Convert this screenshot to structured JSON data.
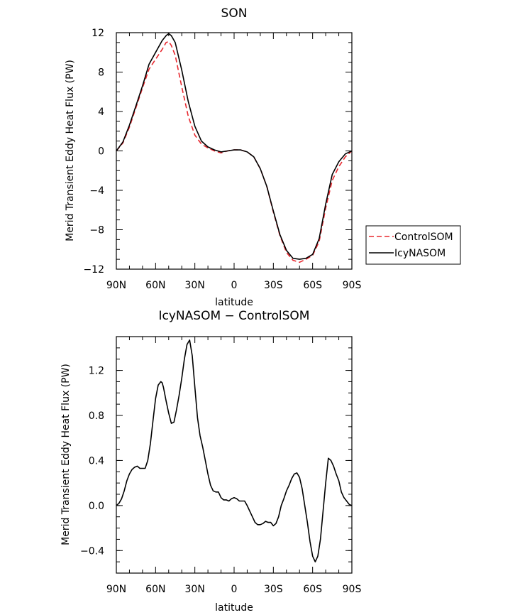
{
  "chart_data": [
    {
      "type": "line",
      "title": "SON",
      "xlabel": "latitude",
      "ylabel": "Merid Transient Eddy Heat Flux (PW)",
      "x_ticks": [
        "90N",
        "60N",
        "30N",
        "0",
        "30S",
        "60S",
        "90S"
      ],
      "y_ticks": [
        "12",
        "8",
        "4",
        "0",
        "−4",
        "−8",
        "−12"
      ],
      "xlim": [
        90,
        -90
      ],
      "ylim": [
        -12,
        12
      ],
      "grid": false,
      "legend_position": "right",
      "series": [
        {
          "name": "ControlSOM",
          "color": "#e8282f",
          "dash": "dashed",
          "x": [
            90,
            85,
            80,
            75,
            70,
            65,
            60,
            55,
            52,
            50,
            48,
            45,
            40,
            35,
            30,
            25,
            20,
            15,
            10,
            5,
            0,
            -5,
            -10,
            -15,
            -20,
            -25,
            -30,
            -35,
            -40,
            -45,
            -50,
            -55,
            -60,
            -65,
            -70,
            -75,
            -80,
            -85,
            -90
          ],
          "y": [
            0,
            0.8,
            2.4,
            4.4,
            6.4,
            8.3,
            9.3,
            10.3,
            11,
            11.1,
            10.7,
            9.7,
            6.5,
            3.5,
            1.6,
            0.7,
            0.3,
            0,
            -0.2,
            0,
            0.1,
            0.1,
            -0.1,
            -0.6,
            -1.8,
            -3.6,
            -6.2,
            -8.6,
            -10.3,
            -11.1,
            -11.3,
            -11,
            -10.6,
            -9.2,
            -5.8,
            -3,
            -1.6,
            -0.6,
            0
          ]
        },
        {
          "name": "IcyNASOM",
          "color": "#000000",
          "dash": "solid",
          "x": [
            90,
            85,
            80,
            75,
            70,
            65,
            60,
            55,
            52,
            50,
            48,
            45,
            40,
            35,
            30,
            25,
            20,
            15,
            10,
            5,
            0,
            -5,
            -10,
            -15,
            -20,
            -25,
            -30,
            -35,
            -40,
            -45,
            -50,
            -55,
            -60,
            -65,
            -70,
            -75,
            -80,
            -85,
            -90
          ],
          "y": [
            0,
            0.9,
            2.6,
            4.6,
            6.6,
            8.8,
            10,
            11.2,
            11.7,
            11.9,
            11.7,
            11,
            8.2,
            5,
            2.5,
            1,
            0.4,
            0.1,
            -0.1,
            0,
            0.1,
            0.1,
            -0.1,
            -0.6,
            -1.8,
            -3.6,
            -6.1,
            -8.5,
            -10.1,
            -10.9,
            -11,
            -10.9,
            -10.5,
            -8.9,
            -5.4,
            -2.4,
            -1.1,
            -0.3,
            0
          ]
        }
      ]
    },
    {
      "type": "line",
      "title": "IcyNASOM − ControlSOM",
      "xlabel": "latitude",
      "ylabel": "Merid Transient Eddy Heat Flux (PW)",
      "x_ticks": [
        "90N",
        "60N",
        "30N",
        "0",
        "30S",
        "60S",
        "90S"
      ],
      "y_ticks": [
        "1.2",
        "0.8",
        "0.4",
        "0.0",
        "−0.4"
      ],
      "xlim": [
        90,
        -90
      ],
      "ylim": [
        -0.6,
        1.5
      ],
      "grid": false,
      "series": [
        {
          "color": "#000000",
          "x": [
            90,
            88,
            86,
            84,
            82,
            80,
            78,
            76,
            74,
            72,
            70,
            68,
            66,
            64,
            62,
            60,
            58,
            56,
            55,
            54,
            52,
            50,
            48,
            46,
            44,
            42,
            40,
            38,
            36,
            34,
            32,
            30,
            28,
            26,
            24,
            22,
            20,
            18,
            16,
            14,
            12,
            10,
            8,
            6,
            4,
            2,
            0,
            -2,
            -4,
            -6,
            -8,
            -10,
            -12,
            -14,
            -16,
            -18,
            -20,
            -22,
            -24,
            -26,
            -28,
            -30,
            -32,
            -34,
            -36,
            -38,
            -40,
            -42,
            -44,
            -46,
            -48,
            -50,
            -52,
            -54,
            -56,
            -58,
            -60,
            -62,
            -64,
            -66,
            -68,
            -70,
            -72,
            -74,
            -76,
            -78,
            -80,
            -82,
            -84,
            -86,
            -88,
            -90
          ],
          "y": [
            0,
            0.02,
            0.06,
            0.13,
            0.22,
            0.28,
            0.32,
            0.34,
            0.35,
            0.33,
            0.33,
            0.33,
            0.4,
            0.55,
            0.75,
            0.95,
            1.07,
            1.1,
            1.09,
            1.05,
            0.93,
            0.82,
            0.73,
            0.74,
            0.85,
            0.98,
            1.13,
            1.3,
            1.43,
            1.47,
            1.33,
            1.05,
            0.78,
            0.62,
            0.52,
            0.4,
            0.28,
            0.18,
            0.13,
            0.12,
            0.12,
            0.07,
            0.05,
            0.05,
            0.04,
            0.06,
            0.07,
            0.06,
            0.04,
            0.04,
            0.04,
            0,
            -0.05,
            -0.1,
            -0.15,
            -0.17,
            -0.17,
            -0.16,
            -0.14,
            -0.15,
            -0.15,
            -0.18,
            -0.16,
            -0.1,
            0,
            0.06,
            0.13,
            0.18,
            0.24,
            0.28,
            0.29,
            0.25,
            0.15,
            0,
            -0.15,
            -0.32,
            -0.45,
            -0.5,
            -0.45,
            -0.3,
            -0.05,
            0.2,
            0.42,
            0.4,
            0.35,
            0.28,
            0.22,
            0.12,
            0.07,
            0.04,
            0.01,
            0
          ]
        }
      ]
    }
  ]
}
